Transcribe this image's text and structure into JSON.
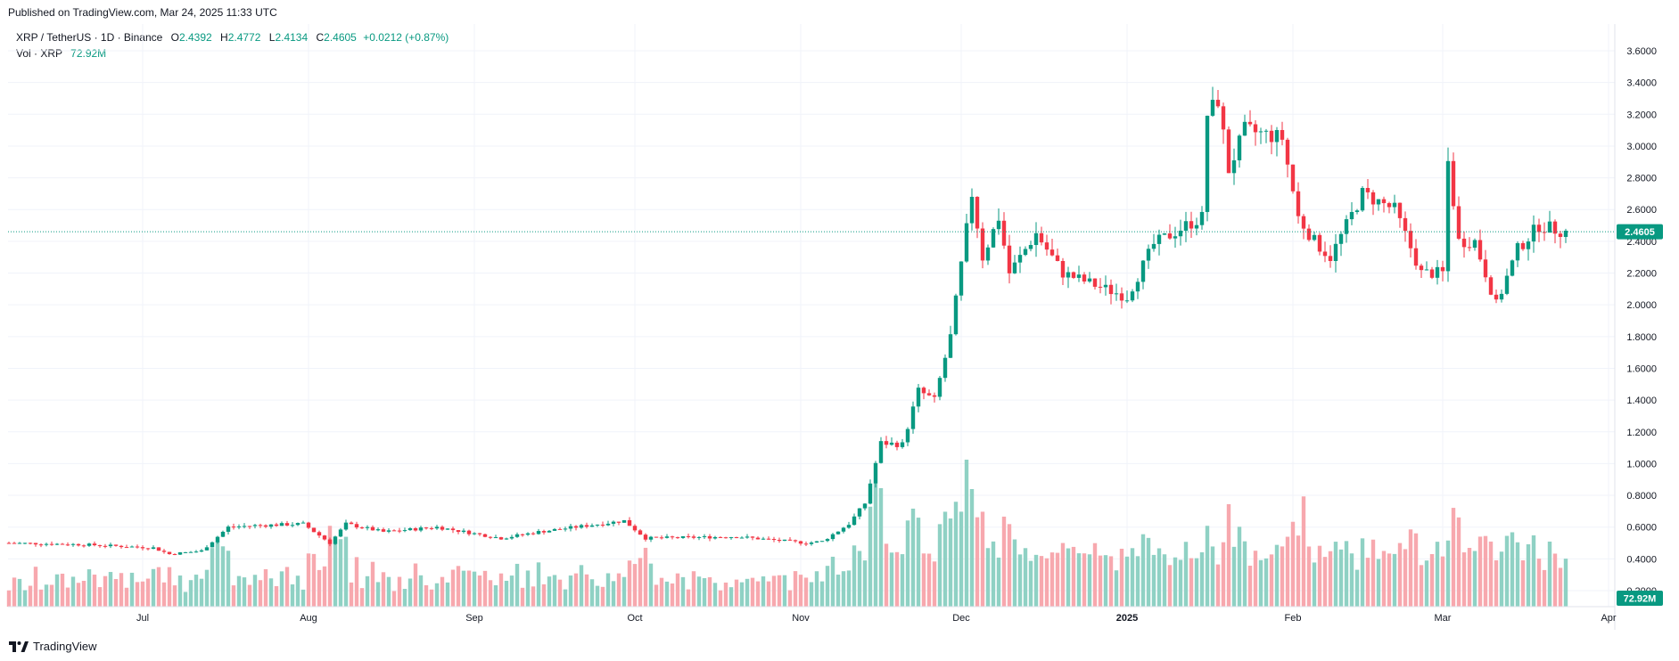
{
  "published": "Published on TradingView.com, Mar 24, 2025 11:33 UTC",
  "legend": {
    "symbol": "XRP / TetherUS · 1D · Binance",
    "o_label": "O",
    "o_value": "2.4392",
    "h_label": "H",
    "h_value": "2.4772",
    "l_label": "L",
    "l_value": "2.4134",
    "c_label": "C",
    "c_value": "2.4605",
    "change": "+0.0212 (+0.87%)",
    "vol_label": "Vol · XRP",
    "vol_value": "72.92M"
  },
  "price_badge": "2.4605",
  "volume_badge": "72.92M",
  "footer_brand": "TradingView",
  "colors": {
    "up": "#089981",
    "down": "#f23645",
    "up_vol": "#8fd1c4",
    "down_vol": "#f7a8ae",
    "grid": "#f0f3fa",
    "axis_text": "#131722"
  },
  "chart_data": {
    "type": "candlestick",
    "xlabel": "",
    "ylabel": "",
    "ylim": [
      0.1,
      3.72
    ],
    "y_ticks": [
      "3.6000",
      "3.4000",
      "3.2000",
      "3.0000",
      "2.8000",
      "2.6000",
      "2.4000",
      "2.2000",
      "2.0000",
      "1.8000",
      "1.6000",
      "1.4000",
      "1.2000",
      "1.0000",
      "0.8000",
      "0.6000",
      "0.4000",
      "0.2000"
    ],
    "x_ticks": [
      "Jul",
      "Aug",
      "Sep",
      "Oct",
      "Nov",
      "Dec",
      "2025",
      "Feb",
      "Mar",
      "Apr"
    ],
    "last_price": 2.4605,
    "keypoints": [
      {
        "date": "2024-06-06",
        "price": 0.5
      },
      {
        "date": "2024-06-20",
        "price": 0.49
      },
      {
        "date": "2024-07-03",
        "price": 0.47
      },
      {
        "date": "2024-07-06",
        "price": 0.43
      },
      {
        "date": "2024-07-12",
        "price": 0.45
      },
      {
        "date": "2024-07-17",
        "price": 0.6
      },
      {
        "date": "2024-07-22",
        "price": 0.61
      },
      {
        "date": "2024-07-31",
        "price": 0.62
      },
      {
        "date": "2024-08-05",
        "price": 0.5
      },
      {
        "date": "2024-08-08",
        "price": 0.62
      },
      {
        "date": "2024-08-15",
        "price": 0.57
      },
      {
        "date": "2024-08-25",
        "price": 0.6
      },
      {
        "date": "2024-09-06",
        "price": 0.53
      },
      {
        "date": "2024-09-13",
        "price": 0.57
      },
      {
        "date": "2024-09-29",
        "price": 0.64
      },
      {
        "date": "2024-10-03",
        "price": 0.53
      },
      {
        "date": "2024-10-20",
        "price": 0.54
      },
      {
        "date": "2024-11-02",
        "price": 0.5
      },
      {
        "date": "2024-11-05",
        "price": 0.51
      },
      {
        "date": "2024-11-10",
        "price": 0.62
      },
      {
        "date": "2024-11-13",
        "price": 0.75
      },
      {
        "date": "2024-11-16",
        "price": 1.13
      },
      {
        "date": "2024-11-20",
        "price": 1.12
      },
      {
        "date": "2024-11-23",
        "price": 1.46
      },
      {
        "date": "2024-11-26",
        "price": 1.4
      },
      {
        "date": "2024-11-29",
        "price": 1.8
      },
      {
        "date": "2024-12-03",
        "price": 2.7
      },
      {
        "date": "2024-12-05",
        "price": 2.3
      },
      {
        "date": "2024-12-08",
        "price": 2.55
      },
      {
        "date": "2024-12-10",
        "price": 2.2
      },
      {
        "date": "2024-12-15",
        "price": 2.45
      },
      {
        "date": "2024-12-20",
        "price": 2.2
      },
      {
        "date": "2025-01-01",
        "price": 2.05
      },
      {
        "date": "2025-01-06",
        "price": 2.38
      },
      {
        "date": "2025-01-12",
        "price": 2.5
      },
      {
        "date": "2025-01-15",
        "price": 2.55
      },
      {
        "date": "2025-01-16",
        "price": 3.2
      },
      {
        "date": "2025-01-18",
        "price": 3.29
      },
      {
        "date": "2025-01-20",
        "price": 2.85
      },
      {
        "date": "2025-01-23",
        "price": 3.1
      },
      {
        "date": "2025-01-30",
        "price": 3.05
      },
      {
        "date": "2025-02-02",
        "price": 2.55
      },
      {
        "date": "2025-02-05",
        "price": 2.4
      },
      {
        "date": "2025-02-08",
        "price": 2.3
      },
      {
        "date": "2025-02-14",
        "price": 2.7
      },
      {
        "date": "2025-02-20",
        "price": 2.6
      },
      {
        "date": "2025-02-25",
        "price": 2.2
      },
      {
        "date": "2025-03-01",
        "price": 2.2
      },
      {
        "date": "2025-03-02",
        "price": 2.9
      },
      {
        "date": "2025-03-04",
        "price": 2.4
      },
      {
        "date": "2025-03-07",
        "price": 2.4
      },
      {
        "date": "2025-03-11",
        "price": 2.0
      },
      {
        "date": "2025-03-15",
        "price": 2.35
      },
      {
        "date": "2025-03-19",
        "price": 2.5
      },
      {
        "date": "2025-03-24",
        "price": 2.46
      }
    ],
    "volume_spikes": [
      {
        "date": "2024-08-05",
        "level": 0.55
      },
      {
        "date": "2024-11-29",
        "level": 0.6
      },
      {
        "date": "2024-12-02",
        "level": 1.0
      },
      {
        "date": "2024-12-03",
        "level": 0.8
      },
      {
        "date": "2025-01-16",
        "level": 0.55
      },
      {
        "date": "2025-02-03",
        "level": 0.75
      },
      {
        "date": "2025-03-02",
        "level": 0.45
      },
      {
        "date": "2025-03-06",
        "level": 0.4
      }
    ]
  }
}
